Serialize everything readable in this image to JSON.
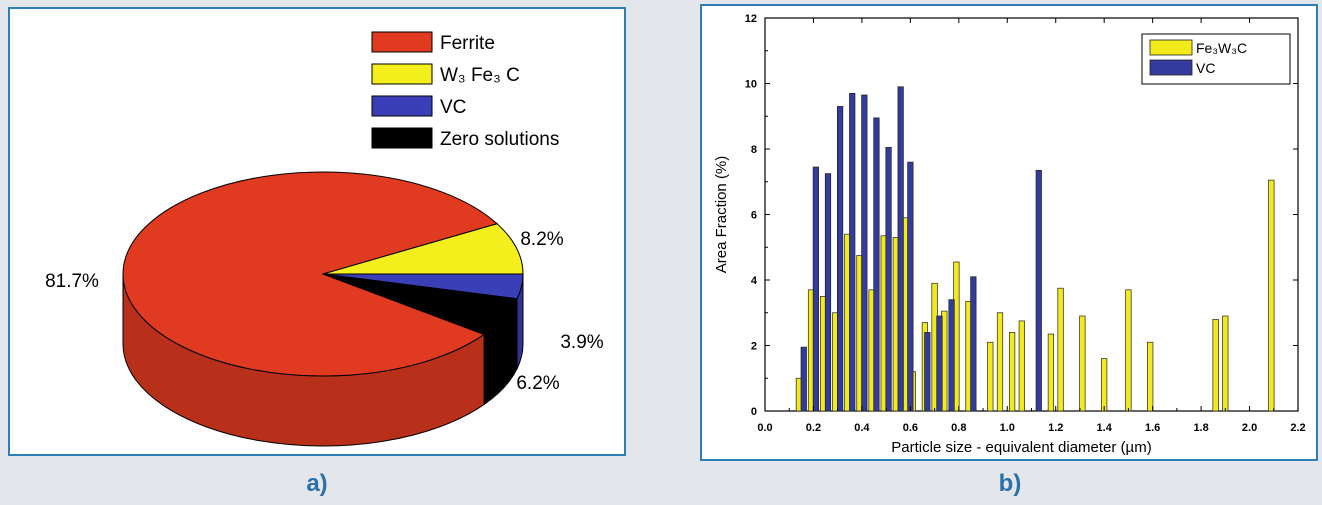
{
  "panels": {
    "a": {
      "caption": "a)",
      "legend": [
        {
          "label": "Ferrite",
          "color": "#e03a20"
        },
        {
          "label": "W₃ Fe₃ C",
          "color": "#f5ee1d"
        },
        {
          "label": "VC",
          "color": "#3a3fb8"
        },
        {
          "label": "Zero solutions",
          "color": "#000000"
        }
      ]
    },
    "b": {
      "caption": "b)"
    }
  },
  "chart_data": [
    {
      "type": "pie",
      "style": "3d",
      "slices": [
        {
          "label": "Ferrite",
          "value": 81.7,
          "display": "81.7%",
          "color": "#e03a20"
        },
        {
          "label": "W₃ Fe₃ C",
          "value": 8.2,
          "display": "8.2%",
          "color": "#f5ee1d"
        },
        {
          "label": "VC",
          "value": 3.9,
          "display": "3.9%",
          "color": "#3a3fb8"
        },
        {
          "label": "Zero solutions",
          "value": 6.2,
          "display": "6.2%",
          "color": "#000000"
        }
      ],
      "legend_position": "top-right"
    },
    {
      "type": "bar",
      "xlabel": "Particle size - equivalent diameter (µm)",
      "ylabel": "Area Fraction (%)",
      "xlim": [
        0.0,
        2.2
      ],
      "ylim": [
        0,
        12
      ],
      "xticks": [
        "0.0",
        "0.2",
        "0.4",
        "0.6",
        "0.8",
        "1.0",
        "1.2",
        "1.4",
        "1.6",
        "1.8",
        "2.0",
        "2.2"
      ],
      "yticks": [
        "0",
        "2",
        "4",
        "6",
        "8",
        "10",
        "12"
      ],
      "legend_position": "top-right",
      "grid": false,
      "series": [
        {
          "name": "Fe₃W₃C",
          "color": "#f3ea1b",
          "points": [
            [
              0.14,
              1.0
            ],
            [
              0.19,
              3.7
            ],
            [
              0.24,
              3.5
            ],
            [
              0.29,
              3.0
            ],
            [
              0.34,
              5.4
            ],
            [
              0.39,
              4.75
            ],
            [
              0.44,
              3.7
            ],
            [
              0.49,
              5.35
            ],
            [
              0.54,
              5.3
            ],
            [
              0.58,
              5.9
            ],
            [
              0.61,
              1.2
            ],
            [
              0.66,
              2.7
            ],
            [
              0.7,
              3.9
            ],
            [
              0.74,
              3.05
            ],
            [
              0.79,
              4.55
            ],
            [
              0.84,
              3.35
            ],
            [
              0.93,
              2.1
            ],
            [
              0.97,
              3.0
            ],
            [
              1.02,
              2.4
            ],
            [
              1.06,
              2.75
            ],
            [
              1.18,
              2.35
            ],
            [
              1.22,
              3.75
            ],
            [
              1.31,
              2.9
            ],
            [
              1.4,
              1.6
            ],
            [
              1.5,
              3.7
            ],
            [
              1.59,
              2.1
            ],
            [
              1.86,
              2.8
            ],
            [
              1.9,
              2.9
            ],
            [
              2.09,
              7.05
            ]
          ]
        },
        {
          "name": "VC",
          "color": "#333b9c",
          "points": [
            [
              0.16,
              1.95
            ],
            [
              0.21,
              7.45
            ],
            [
              0.26,
              7.25
            ],
            [
              0.31,
              9.3
            ],
            [
              0.36,
              9.7
            ],
            [
              0.41,
              9.65
            ],
            [
              0.46,
              8.95
            ],
            [
              0.51,
              8.05
            ],
            [
              0.56,
              9.9
            ],
            [
              0.6,
              7.6
            ],
            [
              0.67,
              2.4
            ],
            [
              0.72,
              2.9
            ],
            [
              0.77,
              3.4
            ],
            [
              0.86,
              4.1
            ],
            [
              1.13,
              7.35
            ]
          ]
        }
      ]
    }
  ]
}
